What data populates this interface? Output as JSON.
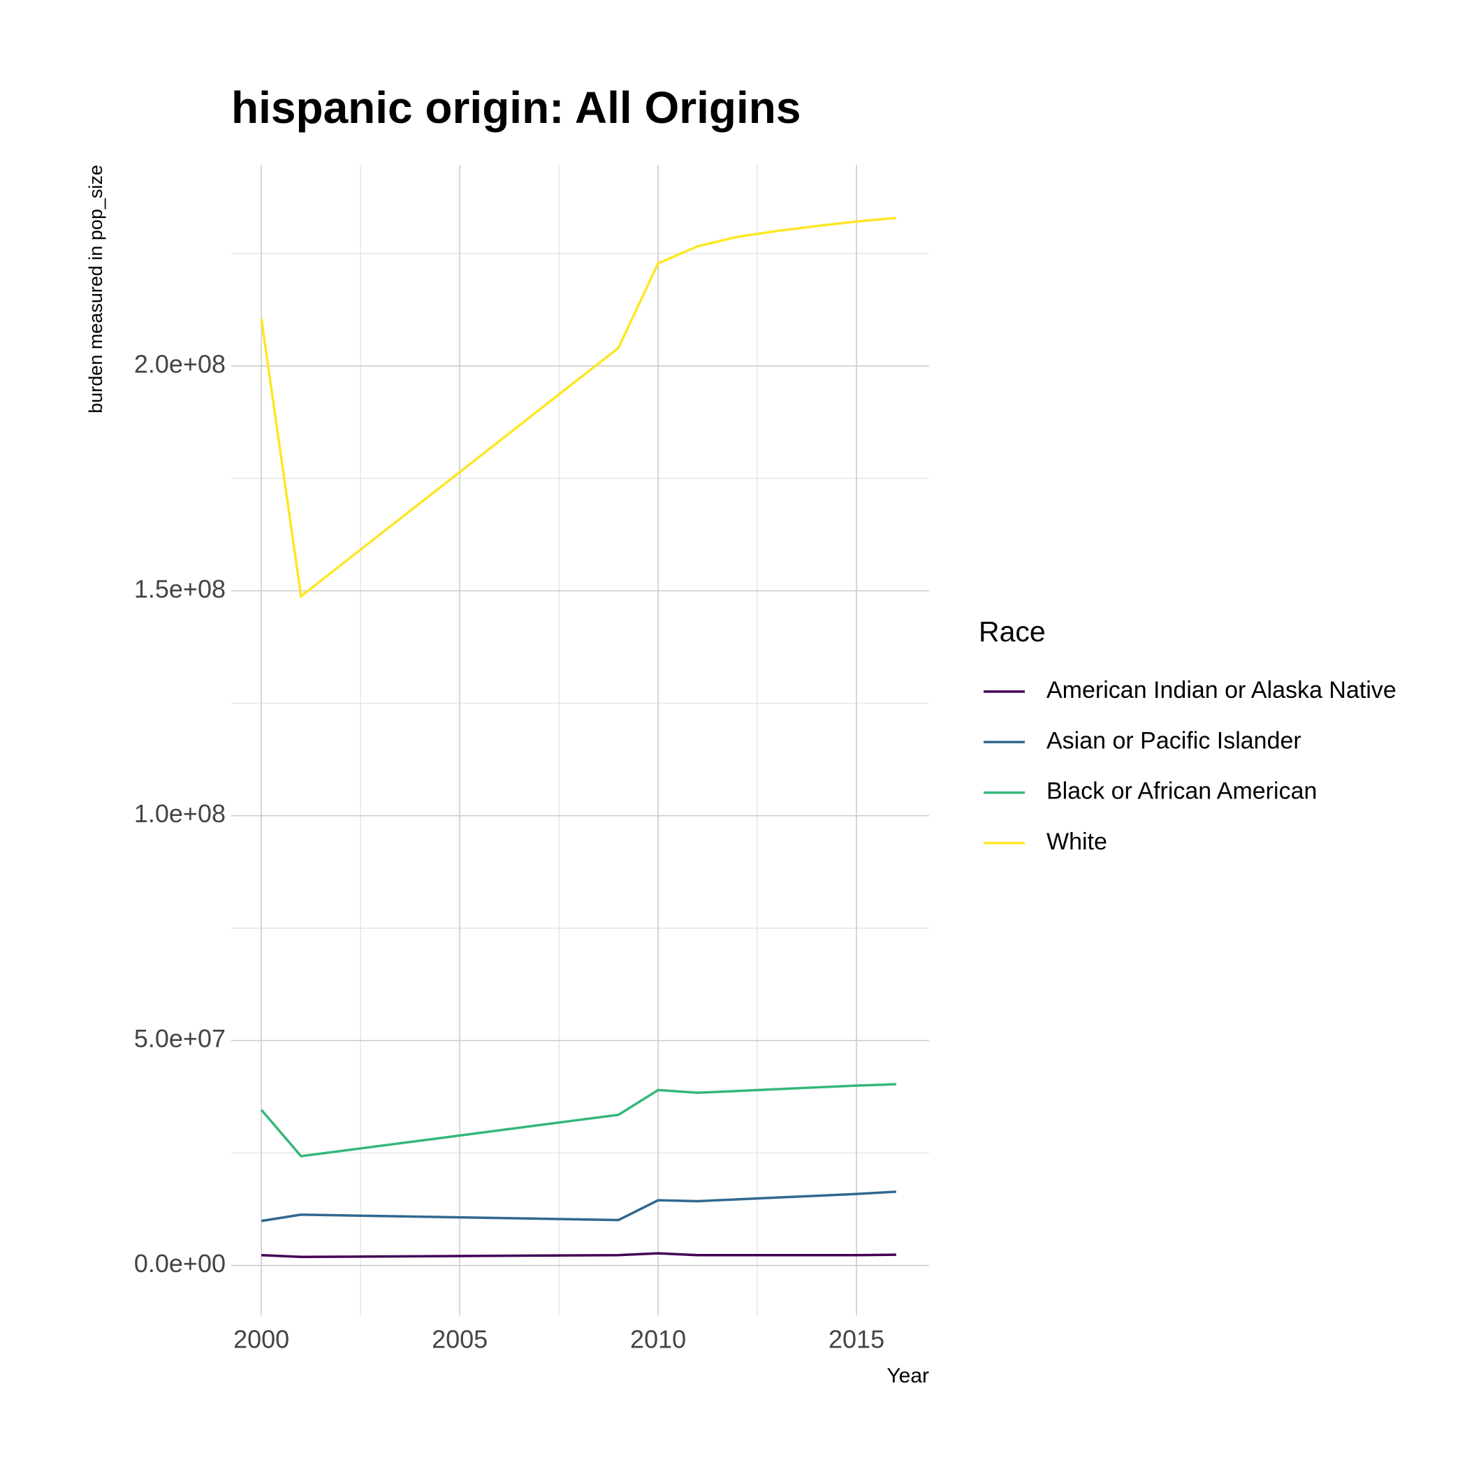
{
  "chart_data": {
    "type": "line",
    "title": "hispanic origin: All Origins",
    "x_label": "Year",
    "y_label": "burden measured in pop_size",
    "x": [
      2000,
      2001,
      2009,
      2010,
      2011,
      2012,
      2013,
      2014,
      2015,
      2016
    ],
    "series": [
      {
        "name": "American Indian or Alaska Native",
        "color": "#440154",
        "values": [
          2300000,
          1900000,
          2300000,
          2700000,
          2300000,
          2300000,
          2300000,
          2300000,
          2300000,
          2400000
        ]
      },
      {
        "name": "Asian or Pacific Islander",
        "color": "#31688e",
        "values": [
          9900000,
          11300000,
          10100000,
          14500000,
          14300000,
          14700000,
          15100000,
          15500000,
          15900000,
          16400000
        ]
      },
      {
        "name": "Black or African American",
        "color": "#35b779",
        "values": [
          34600000,
          24300000,
          33500000,
          39000000,
          38400000,
          38800000,
          39200000,
          39600000,
          40000000,
          40300000
        ]
      },
      {
        "name": "White",
        "color": "#fde725",
        "values": [
          210500000,
          148800000,
          204000000,
          222800000,
          226600000,
          228700000,
          230000000,
          231100000,
          232100000,
          232900000
        ]
      }
    ],
    "legend_title": "Race",
    "legend_position": "right",
    "xlim": [
      1999.24,
      2016.83
    ],
    "xticks": [
      2000,
      2005,
      2010,
      2015
    ],
    "xminorticks": [
      2002.5,
      2007.5,
      2012.5
    ],
    "ylim": [
      -11100000,
      244700000
    ],
    "yticks": [
      {
        "value": 0,
        "label": "0.0e+00"
      },
      {
        "value": 50000000,
        "label": "5.0e+07"
      },
      {
        "value": 100000000,
        "label": "1.0e+08"
      },
      {
        "value": 150000000,
        "label": "1.5e+08"
      },
      {
        "value": 200000000,
        "label": "2.0e+08"
      }
    ],
    "yminorticks": [
      25000000,
      75000000,
      125000000,
      175000000,
      225000000
    ],
    "grid": true
  }
}
